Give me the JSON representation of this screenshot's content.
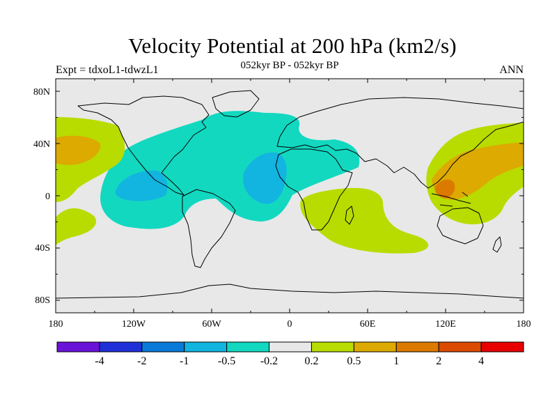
{
  "title": "Velocity Potential at 200 hPa (km2/s)",
  "subtitle": "052kyr BP - 052kyr BP",
  "left_label": "Expt = tdxoL1-tdwzL1",
  "right_label": "ANN",
  "lat_ticks": [
    "80N",
    "40N",
    "0",
    "40S",
    "80S"
  ],
  "lon_ticks": [
    "180",
    "120W",
    "60W",
    "0",
    "60E",
    "120E",
    "180"
  ],
  "colorbar": {
    "colors": [
      "#6b12d8",
      "#2030d8",
      "#0a7ad8",
      "#12b4e0",
      "#12d8c0",
      "#e8e8e8",
      "#b8dc00",
      "#dcaa00",
      "#dc7a00",
      "#dc4a00",
      "#e80000"
    ],
    "labels": [
      "-4",
      "-2",
      "-1",
      "-0.5",
      "-0.2",
      "0.2",
      "0.5",
      "1",
      "2",
      "4"
    ]
  },
  "colors": {
    "neutral": "#e8e8e8",
    "pos_weak": "#b8dc00",
    "pos_mid": "#dcaa00",
    "pos_strong": "#dc7a00",
    "neg_weak": "#12d8c0",
    "neg_mid": "#12b4e0"
  }
}
